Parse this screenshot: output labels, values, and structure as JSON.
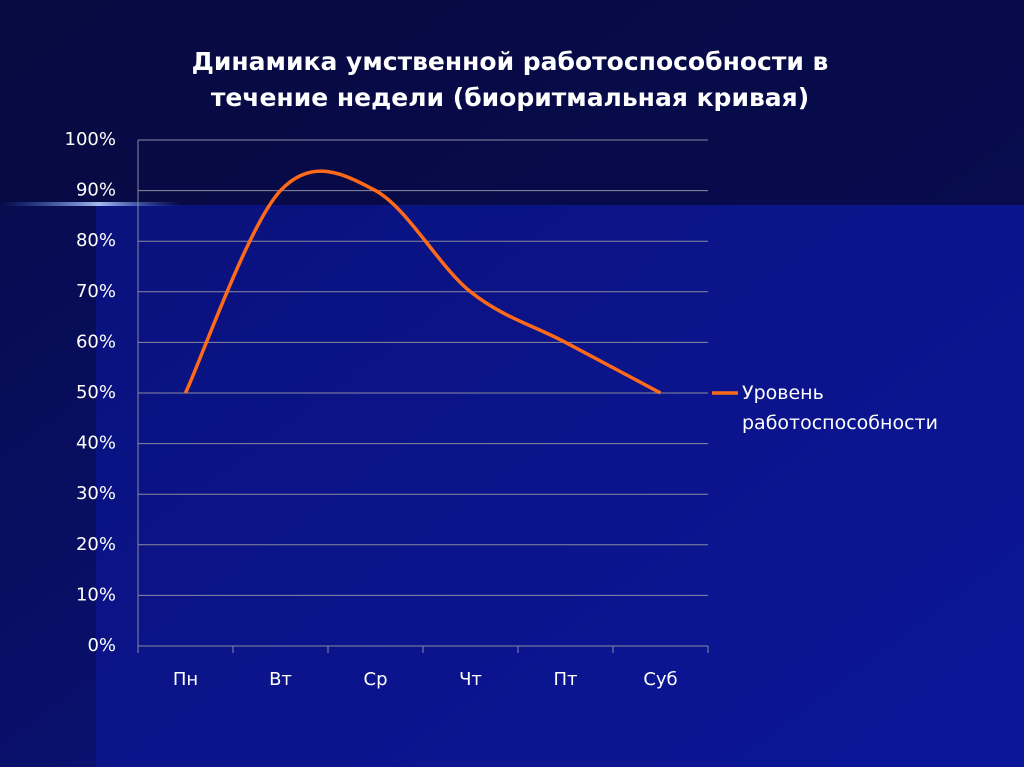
{
  "chart_data": {
    "type": "line",
    "title": "Динамика умственной работоспособности в течение недели (биоритмальная кривая)",
    "categories": [
      "Пн",
      "Вт",
      "Ср",
      "Чт",
      "Пт",
      "Суб"
    ],
    "series": [
      {
        "name": "Уровень работоспособности",
        "color": "#ff6a1a",
        "values": [
          50,
          90,
          90,
          70,
          60,
          50
        ]
      }
    ],
    "ylim": [
      0,
      100
    ],
    "yticks": [
      {
        "value": 0,
        "label": "0%"
      },
      {
        "value": 10,
        "label": "10%"
      },
      {
        "value": 20,
        "label": "20%"
      },
      {
        "value": 30,
        "label": "30%"
      },
      {
        "value": 40,
        "label": "40%"
      },
      {
        "value": 50,
        "label": "50%"
      },
      {
        "value": 60,
        "label": "60%"
      },
      {
        "value": 70,
        "label": "70%"
      },
      {
        "value": 80,
        "label": "80%"
      },
      {
        "value": 90,
        "label": "90%"
      },
      {
        "value": 100,
        "label": "100%"
      }
    ],
    "grid": true,
    "smooth": true,
    "legend": "right"
  }
}
